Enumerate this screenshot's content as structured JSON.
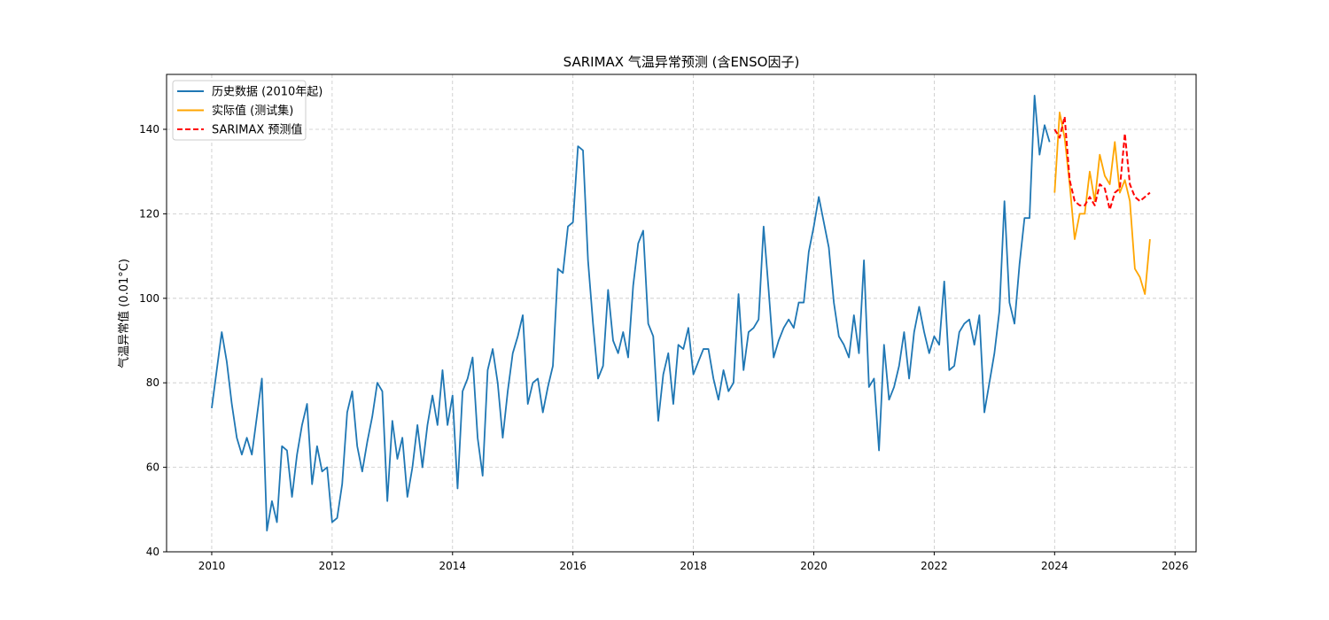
{
  "chart_data": {
    "type": "line",
    "title": "SARIMAX 气温异常预测 (含ENSO因子)",
    "xlabel": "",
    "ylabel": "气温异常值 (0.01°C)",
    "xlim": [
      2009.25,
      2026.35
    ],
    "ylim": [
      40,
      153
    ],
    "x_ticks": [
      2010,
      2012,
      2014,
      2016,
      2018,
      2020,
      2022,
      2024,
      2026
    ],
    "y_ticks": [
      40,
      60,
      80,
      100,
      120,
      140
    ],
    "grid": true,
    "legend_position": "top-left",
    "series": [
      {
        "name": "历史数据 (2010年起)",
        "color": "#1f77b4",
        "style": "solid",
        "start_year": 2010,
        "values": [
          74,
          83,
          92,
          85,
          75,
          67,
          63,
          67,
          63,
          72,
          81,
          45,
          52,
          47,
          65,
          64,
          53,
          63,
          70,
          75,
          56,
          65,
          59,
          60,
          47,
          48,
          56,
          73,
          78,
          65,
          59,
          66,
          72,
          80,
          78,
          52,
          71,
          62,
          67,
          53,
          60,
          70,
          60,
          70,
          77,
          70,
          83,
          70,
          77,
          55,
          78,
          81,
          86,
          67,
          58,
          83,
          88,
          80,
          67,
          78,
          87,
          91,
          96,
          75,
          80,
          81,
          73,
          79,
          84,
          107,
          106,
          117,
          118,
          136,
          135,
          109,
          94,
          81,
          84,
          102,
          90,
          87,
          92,
          86,
          103,
          113,
          116,
          94,
          91,
          71,
          82,
          87,
          75,
          89,
          88,
          93,
          82,
          85,
          88,
          88,
          81,
          76,
          83,
          78,
          80,
          101,
          83,
          92,
          93,
          95,
          117,
          102,
          86,
          90,
          93,
          95,
          93,
          99,
          99,
          111,
          117,
          124,
          118,
          112,
          99,
          91,
          89,
          86,
          96,
          87,
          109,
          79,
          81,
          64,
          89,
          76,
          79,
          84,
          92,
          81,
          92,
          98,
          92,
          87,
          91,
          89,
          104,
          83,
          84,
          92,
          94,
          95,
          89,
          96,
          73,
          80,
          87,
          97,
          123,
          99,
          94,
          108,
          119,
          119,
          148,
          134,
          141,
          137
        ]
      },
      {
        "name": "实际值 (测试集)",
        "color": "#ffa500",
        "style": "solid",
        "start_year": 2024,
        "values": [
          125,
          144,
          138,
          127,
          114,
          120,
          120,
          130,
          123,
          134,
          129,
          127,
          137,
          125,
          128,
          123,
          107,
          105,
          101,
          114
        ]
      },
      {
        "name": "SARIMAX 预测值",
        "color": "#ff0000",
        "style": "dashed",
        "start_year": 2024,
        "values": [
          140,
          138,
          143,
          128,
          123,
          122,
          122,
          124,
          122,
          127,
          126,
          121,
          125,
          126,
          139,
          127,
          124,
          123,
          124,
          125
        ]
      }
    ]
  }
}
